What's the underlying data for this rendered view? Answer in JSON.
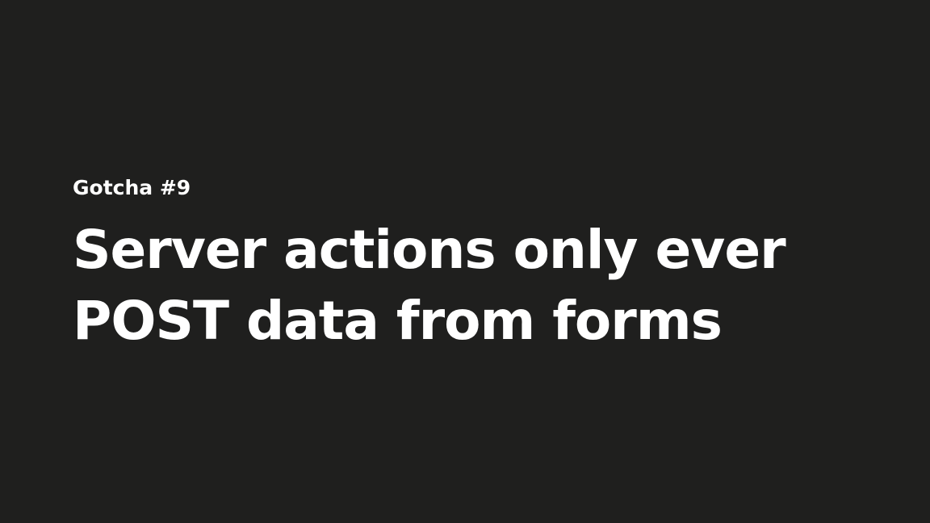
{
  "slide": {
    "eyebrow": "Gotcha #9",
    "title_lines": [
      "Server actions only ever",
      "POST data from forms"
    ]
  },
  "colors": {
    "background": "#1f1f1e",
    "text": "#ffffff"
  }
}
